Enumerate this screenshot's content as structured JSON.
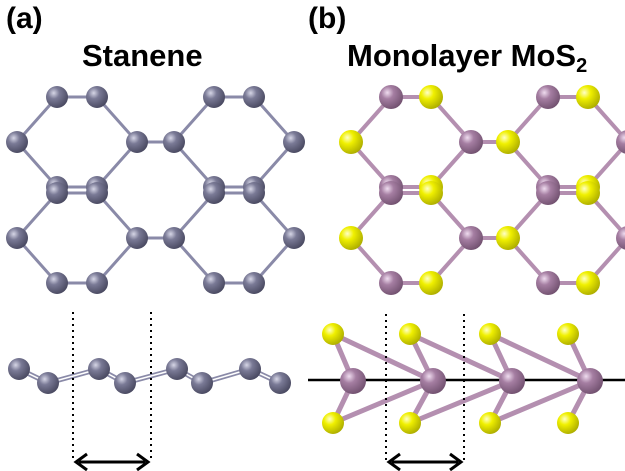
{
  "panel_a": {
    "label": "(a)",
    "title": "Stanene",
    "colors": {
      "sn": "#6f6f8c",
      "bond": "#8a8aa8"
    }
  },
  "panel_b": {
    "label": "(b)",
    "title_main": "Monolayer MoS",
    "title_sub": "2",
    "colors": {
      "mo": "#a37ea0",
      "s": "#e6e600",
      "bond_mo": "#b48fb0",
      "bond_s": "#d8d800"
    }
  }
}
